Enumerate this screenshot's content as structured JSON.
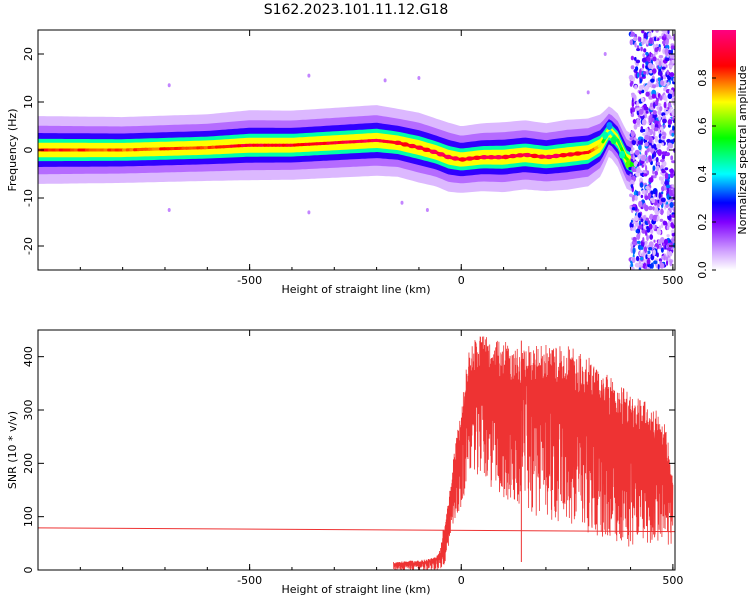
{
  "title": "S162.2023.101.11.12.G18",
  "chart_data": [
    {
      "type": "heatmap",
      "xlabel": "Height of straight line (km)",
      "ylabel": "Frequency (Hz)",
      "xlim": [
        -1000,
        505
      ],
      "ylim": [
        -25,
        25
      ],
      "x_ticks": [
        -500,
        0,
        500
      ],
      "y_ticks": [
        -20,
        -10,
        0,
        10,
        20
      ],
      "colorbar": {
        "label": "Normalized spectral amplitude",
        "range": [
          0,
          1
        ],
        "ticks": [
          0.0,
          0.2,
          0.4,
          0.6,
          0.8
        ],
        "tick_labels": [
          "0.0",
          "0.2",
          "0.4",
          "0.6",
          "0.8"
        ],
        "colors": [
          "#ffffff",
          "#8000ff",
          "#0000ff",
          "#00ffff",
          "#00ff00",
          "#ffff00",
          "#ff0000",
          "#ff0080"
        ]
      },
      "ridge": {
        "x": [
          -1000,
          -800,
          -600,
          -500,
          -400,
          -300,
          -200,
          -150,
          -100,
          -60,
          -30,
          0,
          50,
          100,
          150,
          200,
          250,
          300,
          330,
          350,
          370,
          390,
          410
        ],
        "freq": [
          0,
          0,
          0.5,
          1,
          1,
          1.5,
          2,
          1.5,
          0.5,
          -0.5,
          -1.5,
          -2,
          -1.5,
          -1.5,
          -1,
          -1.5,
          -1,
          -0.5,
          1,
          4,
          2,
          -2,
          -3
        ],
        "amplitude": [
          0.85,
          0.8,
          0.82,
          0.9,
          0.88,
          0.9,
          0.92,
          0.85,
          0.9,
          0.85,
          0.88,
          0.82,
          0.85,
          0.9,
          0.88,
          0.85,
          0.9,
          0.85,
          0.7,
          0.4,
          0.5,
          0.6,
          0.6
        ]
      },
      "noise_region": [
        410,
        505
      ]
    },
    {
      "type": "line",
      "xlabel": "Height of straight line (km)",
      "ylabel": "SNR (10 * v/v)",
      "xlim": [
        -1000,
        505
      ],
      "ylim": [
        0,
        450
      ],
      "x_ticks": [
        -500,
        0,
        500
      ],
      "y_ticks": [
        0,
        100,
        200,
        300,
        400
      ],
      "series": [
        {
          "color": "#ee3333",
          "envelope": {
            "x": [
              -160,
              -80,
              -60,
              -50,
              -40,
              -30,
              -20,
              -10,
              0,
              10,
              20,
              40,
              60,
              80,
              100,
              140,
              180,
              220,
              260,
              300,
              320,
              340,
              360,
              380,
              400,
              430,
              460,
              480,
              500
            ],
            "upper": [
              15,
              20,
              25,
              40,
              90,
              130,
              200,
              260,
              300,
              370,
              420,
              440,
              440,
              430,
              430,
              420,
              420,
              425,
              420,
              400,
              380,
              370,
              360,
              345,
              330,
              320,
              300,
              285,
              180
            ],
            "lower": [
              0,
              0,
              0,
              0,
              10,
              40,
              80,
              100,
              120,
              150,
              170,
              180,
              160,
              150,
              130,
              110,
              100,
              90,
              80,
              70,
              60,
              60,
              50,
              50,
              40,
              50,
              50,
              50,
              40
            ]
          },
          "baseline": {
            "x": [
              -1000,
              505
            ],
            "y": [
              79,
              72
            ]
          }
        }
      ]
    }
  ]
}
